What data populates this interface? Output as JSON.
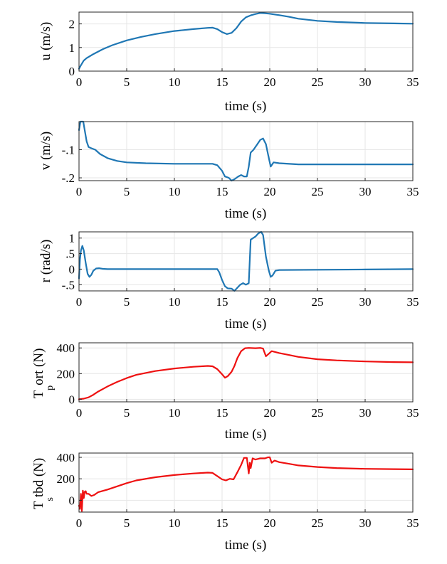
{
  "chart_data": [
    {
      "type": "line",
      "ylabel": "u (m/s)",
      "xlabel": "time (s)",
      "xlim": [
        0,
        35
      ],
      "ylim": [
        0,
        2.5
      ],
      "xticks": [
        0,
        5,
        10,
        15,
        20,
        25,
        30,
        35
      ],
      "yticks": [
        0,
        1,
        2
      ],
      "grid": true,
      "color": "#1f77b4",
      "series": [
        {
          "name": "u",
          "x": [
            0,
            0.2,
            0.5,
            0.8,
            1.5,
            2.5,
            3.5,
            5,
            6.5,
            8,
            10,
            12,
            13.5,
            14,
            14.5,
            15,
            15.5,
            16,
            16.5,
            17,
            17.5,
            18,
            18.5,
            19,
            19.5,
            20,
            21,
            22,
            23,
            25,
            27,
            30,
            33,
            35
          ],
          "y": [
            0.1,
            0.25,
            0.45,
            0.55,
            0.72,
            0.93,
            1.1,
            1.3,
            1.45,
            1.57,
            1.7,
            1.78,
            1.83,
            1.84,
            1.78,
            1.65,
            1.57,
            1.62,
            1.82,
            2.1,
            2.28,
            2.36,
            2.42,
            2.46,
            2.45,
            2.43,
            2.37,
            2.3,
            2.22,
            2.13,
            2.08,
            2.04,
            2.02,
            2.01
          ]
        }
      ]
    },
    {
      "type": "line",
      "ylabel": "v (m/s)",
      "xlabel": "time (s)",
      "xlim": [
        0,
        35
      ],
      "ylim": [
        -0.21,
        0.0
      ],
      "xticks": [
        0,
        5,
        10,
        15,
        20,
        25,
        30,
        35
      ],
      "yticks": [
        -0.2,
        -0.1
      ],
      "grid": true,
      "color": "#1f77b4",
      "series": [
        {
          "name": "v",
          "x": [
            0,
            0.15,
            0.3,
            0.45,
            0.6,
            0.8,
            1.0,
            1.3,
            1.7,
            2.2,
            3,
            4,
            5,
            7,
            10,
            14,
            14.5,
            15,
            15.3,
            15.7,
            16,
            16.3,
            16.7,
            17,
            17.3,
            17.6,
            17.8,
            18,
            18.3,
            18.7,
            19,
            19.3,
            19.6,
            19.9,
            20.1,
            20.4,
            21,
            23,
            25,
            30,
            35
          ],
          "y": [
            -0.03,
            0.0,
            0.01,
            0.0,
            -0.03,
            -0.07,
            -0.09,
            -0.095,
            -0.1,
            -0.115,
            -0.13,
            -0.14,
            -0.145,
            -0.148,
            -0.15,
            -0.15,
            -0.155,
            -0.175,
            -0.195,
            -0.2,
            -0.21,
            -0.205,
            -0.195,
            -0.19,
            -0.195,
            -0.195,
            -0.16,
            -0.11,
            -0.1,
            -0.08,
            -0.065,
            -0.06,
            -0.08,
            -0.13,
            -0.16,
            -0.145,
            -0.148,
            -0.152,
            -0.152,
            -0.152,
            -0.152
          ]
        }
      ]
    },
    {
      "type": "line",
      "ylabel": "r (rad/s)",
      "xlabel": "time (s)",
      "xlim": [
        0,
        35
      ],
      "ylim": [
        -0.7,
        1.2
      ],
      "xticks": [
        0,
        5,
        10,
        15,
        20,
        25,
        30,
        35
      ],
      "yticks": [
        -0.5,
        0,
        0.5,
        1
      ],
      "grid": true,
      "color": "#1f77b4",
      "series": [
        {
          "name": "r",
          "x": [
            0,
            0.1,
            0.2,
            0.35,
            0.5,
            0.7,
            0.9,
            1.1,
            1.3,
            1.5,
            1.8,
            2.1,
            2.5,
            3,
            5,
            10,
            14.5,
            14.7,
            15,
            15.3,
            15.6,
            16,
            16.3,
            16.6,
            16.9,
            17.2,
            17.5,
            17.8,
            18.0,
            18.5,
            18.8,
            19.1,
            19.3,
            19.6,
            19.9,
            20.1,
            20.3,
            20.6,
            21,
            25,
            30,
            35
          ],
          "y": [
            -0.3,
            0.3,
            0.6,
            0.75,
            0.6,
            0.2,
            -0.15,
            -0.25,
            -0.18,
            -0.05,
            0.02,
            0.03,
            0.01,
            0.0,
            0.0,
            0.0,
            0.0,
            -0.1,
            -0.35,
            -0.55,
            -0.62,
            -0.63,
            -0.7,
            -0.6,
            -0.5,
            -0.45,
            -0.5,
            -0.45,
            0.95,
            1.05,
            1.15,
            1.2,
            1.1,
            0.4,
            -0.05,
            -0.25,
            -0.2,
            -0.05,
            -0.03,
            -0.02,
            -0.01,
            0.0
          ]
        }
      ]
    },
    {
      "type": "line",
      "ylabel_main": "T",
      "ylabel_sub": "p",
      "ylabel_rest": "ort (N)",
      "xlabel": "time (s)",
      "xlim": [
        0,
        35
      ],
      "ylim": [
        -20,
        440
      ],
      "xticks": [
        0,
        5,
        10,
        15,
        20,
        25,
        30,
        35
      ],
      "yticks": [
        0,
        200,
        400
      ],
      "grid": true,
      "color": "#ee1111",
      "series": [
        {
          "name": "Tport",
          "x": [
            0,
            0.5,
            1,
            1.5,
            2,
            3,
            4,
            5,
            6,
            8,
            10,
            12,
            13.5,
            14,
            14.5,
            15,
            15.3,
            15.6,
            16,
            16.3,
            16.6,
            17,
            17.4,
            17.8,
            18.5,
            19,
            19.3,
            19.6,
            19.9,
            20.2,
            21,
            22,
            23,
            25,
            27,
            30,
            33,
            35
          ],
          "y": [
            0,
            5,
            15,
            35,
            60,
            100,
            135,
            165,
            190,
            220,
            240,
            253,
            260,
            257,
            235,
            195,
            168,
            180,
            215,
            260,
            320,
            375,
            398,
            400,
            398,
            400,
            395,
            335,
            355,
            375,
            360,
            345,
            330,
            312,
            303,
            295,
            290,
            288
          ]
        }
      ]
    },
    {
      "type": "line",
      "ylabel_main": "T",
      "ylabel_sub": "s",
      "ylabel_rest": "tbd (N)",
      "xlabel": "time (s)",
      "xlim": [
        0,
        35
      ],
      "ylim": [
        -110,
        440
      ],
      "xticks": [
        0,
        5,
        10,
        15,
        20,
        25,
        30,
        35
      ],
      "yticks": [
        0,
        200,
        400
      ],
      "grid": true,
      "color": "#ee1111",
      "series": [
        {
          "name": "Tstbd",
          "x": [
            0,
            0.1,
            0.2,
            0.3,
            0.4,
            0.5,
            0.6,
            0.7,
            0.8,
            1.0,
            1.3,
            1.6,
            2,
            3,
            4,
            5,
            6,
            8,
            10,
            12,
            13.5,
            14,
            14.5,
            15,
            15.4,
            15.8,
            16.2,
            16.6,
            17,
            17.3,
            17.6,
            17.8,
            17.9,
            18.0,
            18.2,
            18.5,
            19,
            19.5,
            19.8,
            20.0,
            20.2,
            20.5,
            21,
            22,
            23,
            25,
            27,
            30,
            33,
            35
          ],
          "y": [
            -50,
            -80,
            60,
            -100,
            90,
            20,
            80,
            85,
            60,
            60,
            40,
            50,
            75,
            100,
            130,
            160,
            185,
            215,
            235,
            250,
            258,
            255,
            225,
            195,
            185,
            200,
            195,
            260,
            330,
            395,
            395,
            250,
            350,
            300,
            390,
            380,
            390,
            390,
            400,
            400,
            350,
            370,
            355,
            340,
            325,
            310,
            300,
            293,
            290,
            288
          ]
        }
      ]
    }
  ]
}
